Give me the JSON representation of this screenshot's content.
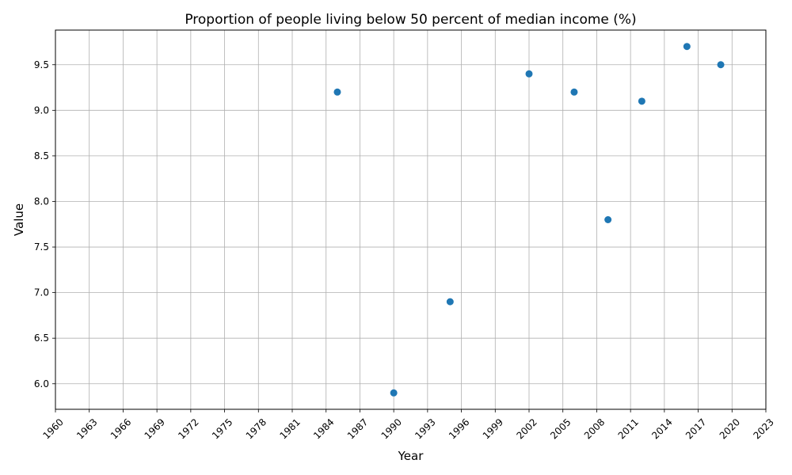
{
  "chart_data": {
    "type": "scatter",
    "title": "Proportion of people living below 50 percent of median income (%)",
    "xlabel": "Year",
    "ylabel": "Value",
    "xlim": [
      1960,
      2023
    ],
    "ylim": [
      5.72,
      9.88
    ],
    "x_ticks": [
      1960,
      1963,
      1966,
      1969,
      1972,
      1975,
      1978,
      1981,
      1984,
      1987,
      1990,
      1993,
      1996,
      1999,
      2002,
      2005,
      2008,
      2011,
      2014,
      2017,
      2020,
      2023
    ],
    "y_ticks": [
      6.0,
      6.5,
      7.0,
      7.5,
      8.0,
      8.5,
      9.0,
      9.5
    ],
    "grid": true,
    "marker_color": "#1f77b4",
    "points": [
      {
        "x": 1985,
        "y": 9.2
      },
      {
        "x": 1990,
        "y": 5.9
      },
      {
        "x": 1995,
        "y": 6.9
      },
      {
        "x": 2002,
        "y": 9.4
      },
      {
        "x": 2006,
        "y": 9.2
      },
      {
        "x": 2009,
        "y": 7.8
      },
      {
        "x": 2012,
        "y": 9.1
      },
      {
        "x": 2016,
        "y": 9.7
      },
      {
        "x": 2019,
        "y": 9.5
      }
    ]
  }
}
